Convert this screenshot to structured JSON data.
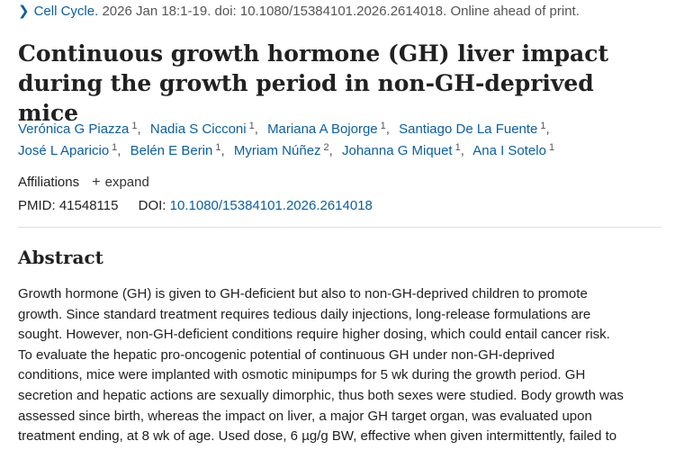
{
  "citation": {
    "journal": "Cell Cycle.",
    "details": "2026 Jan 18:1-19. doi: 10.1080/15384101.2026.2614018. Online ahead of print."
  },
  "title": {
    "line1": "Continuous growth hormone (GH) liver impact",
    "line2": "during the growth period in non-GH-deprived mice"
  },
  "authors": [
    {
      "name": "Verónica G Piazza",
      "aff": "1"
    },
    {
      "name": "Nadia S Cicconi",
      "aff": "1"
    },
    {
      "name": "Mariana A Bojorge",
      "aff": "1"
    },
    {
      "name": "Santiago De La Fuente",
      "aff": "1"
    },
    {
      "name": "José L Aparicio",
      "aff": "1"
    },
    {
      "name": "Belén E Berin",
      "aff": "1"
    },
    {
      "name": "Myriam Núñez",
      "aff": "2"
    },
    {
      "name": "Johanna G Miquet",
      "aff": "1"
    },
    {
      "name": "Ana I Sotelo",
      "aff": "1"
    }
  ],
  "affiliations": {
    "label": "Affiliations",
    "expand_icon": "+",
    "expand_label": "expand"
  },
  "identifiers": {
    "pmid_label": "PMID:",
    "pmid": "41548115",
    "doi_label": "DOI:",
    "doi": "10.1080/15384101.2026.2614018"
  },
  "abstract": {
    "heading": "Abstract",
    "lines": [
      "Growth hormone (GH) is given to GH-deficient but also to non-GH-deprived children to promote",
      "growth. Since standard treatment requires tedious daily injections, long-release formulations are",
      "sought. However, non-GH-deficient conditions require higher dosing, which could entail cancer risk.",
      "To evaluate the hepatic pro-oncogenic potential of continuous GH under non-GH-deprived",
      "conditions, mice were implanted with osmotic minipumps for 5 wk during the growth period. GH",
      "secretion and hepatic actions are sexually dimorphic, thus both sexes were studied. Body growth was",
      "assessed since birth, whereas the impact on liver, a major GH target organ, was evaluated upon",
      "treatment ending, at 8 wk of age. Used dose, 6 µg/g BW, effective when given intermittently, failed to"
    ]
  },
  "icons": {
    "chevron": "chevron-right-icon",
    "expand": "plus-icon"
  },
  "colors": {
    "link": "#0b5fa5",
    "text": "#212121",
    "muted": "#555555"
  }
}
